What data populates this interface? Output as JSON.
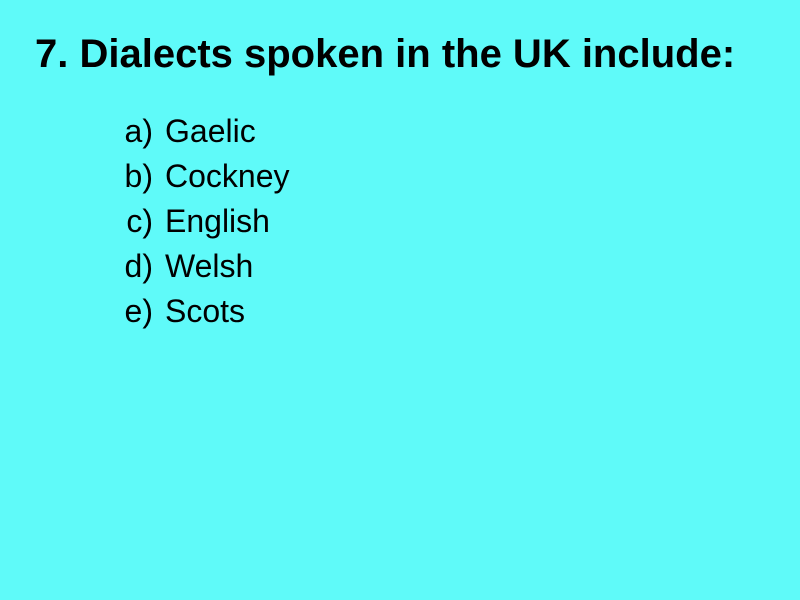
{
  "background_color": "#5ffaf9",
  "title": "7. Dialects spoken in the UK include:",
  "title_fontsize": 40,
  "title_fontweight": "bold",
  "title_color": "#000000",
  "options_fontsize": 32,
  "options_color": "#000000",
  "options": [
    {
      "marker": "a)",
      "text": "Gaelic"
    },
    {
      "marker": "b)",
      "text": "Cockney"
    },
    {
      "marker": "c)",
      "text": "English"
    },
    {
      "marker": "d)",
      "text": "Welsh"
    },
    {
      "marker": "e)",
      "text": "Scots"
    }
  ]
}
